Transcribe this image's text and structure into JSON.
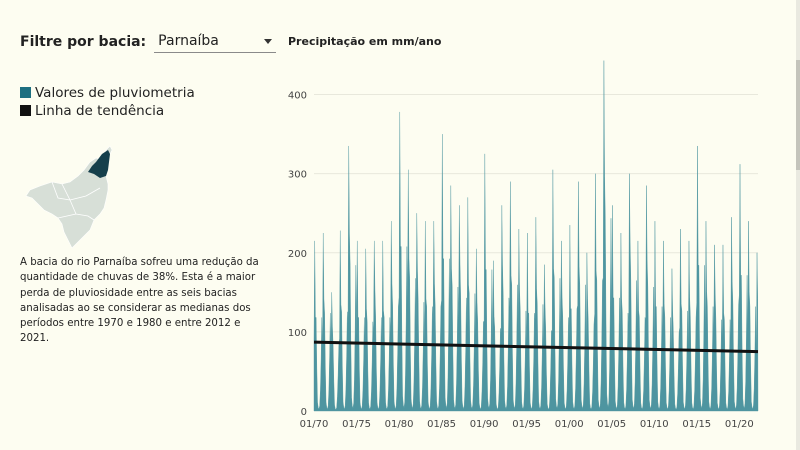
{
  "filter": {
    "label": "Filtre por bacia:",
    "selected": "Parnaíba"
  },
  "legend": [
    {
      "label": "Valores de pluviometria",
      "color": "#1d6f80"
    },
    {
      "label": "Linha de tendência",
      "color": "#111111"
    }
  ],
  "description": "A bacia do rio Parnaíba sofreu uma redução da quantidade de chuvas de 38%. Esta é a maior perda de pluviosidade entre as seis bacias analisadas ao se considerar as medianas dos períodos entre 1970 e 1980 e entre 2012 e 2021.",
  "colors": {
    "area": "#4e95a0",
    "trend": "#111111",
    "map_fill": "#d7dfd7",
    "map_highlight": "#153f4b",
    "grid": "#e8e8dc"
  },
  "chart_data": {
    "type": "area",
    "title": "Precipitação em mm/ano",
    "xlabel": "",
    "ylabel": "",
    "x_range": [
      1970.0,
      2022.2
    ],
    "ylim": [
      0,
      450
    ],
    "yticks": [
      0,
      100,
      200,
      300,
      400
    ],
    "xticks": [
      "01/70",
      "01/75",
      "01/80",
      "01/85",
      "01/90",
      "01/95",
      "01/00",
      "01/05",
      "01/10",
      "01/15",
      "01/20"
    ],
    "grid": "horizontal",
    "annual_peaks": [
      {
        "year": 1970,
        "peak": 215
      },
      {
        "year": 1971,
        "peak": 225
      },
      {
        "year": 1972,
        "peak": 150
      },
      {
        "year": 1973,
        "peak": 228
      },
      {
        "year": 1974,
        "peak": 335
      },
      {
        "year": 1975,
        "peak": 215
      },
      {
        "year": 1976,
        "peak": 205
      },
      {
        "year": 1977,
        "peak": 215
      },
      {
        "year": 1978,
        "peak": 215
      },
      {
        "year": 1979,
        "peak": 240
      },
      {
        "year": 1980,
        "peak": 378
      },
      {
        "year": 1981,
        "peak": 305
      },
      {
        "year": 1982,
        "peak": 250
      },
      {
        "year": 1983,
        "peak": 240
      },
      {
        "year": 1984,
        "peak": 240
      },
      {
        "year": 1985,
        "peak": 350
      },
      {
        "year": 1986,
        "peak": 285
      },
      {
        "year": 1987,
        "peak": 260
      },
      {
        "year": 1988,
        "peak": 270
      },
      {
        "year": 1989,
        "peak": 205
      },
      {
        "year": 1990,
        "peak": 325
      },
      {
        "year": 1991,
        "peak": 190
      },
      {
        "year": 1992,
        "peak": 260
      },
      {
        "year": 1993,
        "peak": 290
      },
      {
        "year": 1994,
        "peak": 230
      },
      {
        "year": 1995,
        "peak": 225
      },
      {
        "year": 1996,
        "peak": 245
      },
      {
        "year": 1997,
        "peak": 185
      },
      {
        "year": 1998,
        "peak": 305
      },
      {
        "year": 1999,
        "peak": 215
      },
      {
        "year": 2000,
        "peak": 235
      },
      {
        "year": 2001,
        "peak": 290
      },
      {
        "year": 2002,
        "peak": 200
      },
      {
        "year": 2003,
        "peak": 300
      },
      {
        "year": 2004,
        "peak": 443
      },
      {
        "year": 2005,
        "peak": 260
      },
      {
        "year": 2006,
        "peak": 225
      },
      {
        "year": 2007,
        "peak": 300
      },
      {
        "year": 2008,
        "peak": 215
      },
      {
        "year": 2009,
        "peak": 285
      },
      {
        "year": 2010,
        "peak": 240
      },
      {
        "year": 2011,
        "peak": 215
      },
      {
        "year": 2012,
        "peak": 180
      },
      {
        "year": 2013,
        "peak": 230
      },
      {
        "year": 2014,
        "peak": 215
      },
      {
        "year": 2015,
        "peak": 335
      },
      {
        "year": 2016,
        "peak": 240
      },
      {
        "year": 2017,
        "peak": 210
      },
      {
        "year": 2018,
        "peak": 210
      },
      {
        "year": 2019,
        "peak": 245
      },
      {
        "year": 2020,
        "peak": 312
      },
      {
        "year": 2021,
        "peak": 240
      },
      {
        "year": 2022,
        "peak": 200
      }
    ],
    "trend_line": {
      "start": {
        "x": 1970.0,
        "y": 87
      },
      "end": {
        "x": 2022.2,
        "y": 75
      }
    }
  }
}
